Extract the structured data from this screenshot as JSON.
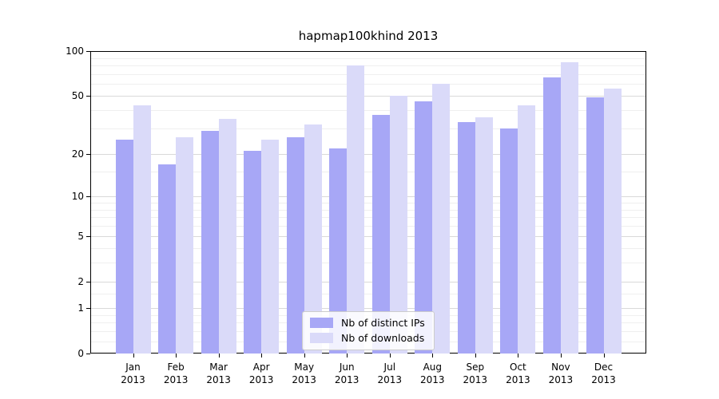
{
  "chart_data": {
    "type": "bar",
    "title": "hapmap100khind 2013",
    "xlabel": "",
    "ylabel": "",
    "y_scale": "log1p",
    "y_max": 100,
    "y_ticks": [
      100,
      50,
      20,
      10,
      5,
      2,
      1,
      0
    ],
    "y_minor_gridlines": [
      0.2,
      0.4,
      0.6,
      0.8,
      1.5,
      3,
      4,
      6,
      7,
      8,
      9,
      15,
      30,
      40,
      60,
      70,
      80,
      90
    ],
    "categories": [
      "Jan 2013",
      "Feb 2013",
      "Mar 2013",
      "Apr 2013",
      "May 2013",
      "Jun 2013",
      "Jul 2013",
      "Aug 2013",
      "Sep 2013",
      "Oct 2013",
      "Nov 2013",
      "Dec 2013"
    ],
    "series": [
      {
        "name": "Nb of distinct IPs",
        "key": "distinct-ips",
        "color": "#a7a7f6",
        "values": [
          25,
          17,
          29,
          21,
          26,
          22,
          37,
          46,
          33,
          30,
          67,
          49
        ]
      },
      {
        "name": "Nb of downloads",
        "key": "downloads",
        "color": "#dadaf9",
        "values": [
          43,
          26,
          35,
          25,
          32,
          80,
          50,
          60,
          36,
          43,
          84,
          56
        ]
      }
    ],
    "legend_position": "lower center",
    "grid": true,
    "colors": {
      "grid_major": "#d9d9d9",
      "grid_minor": "#efefef",
      "axis": "#000000",
      "background": "#ffffff"
    }
  }
}
